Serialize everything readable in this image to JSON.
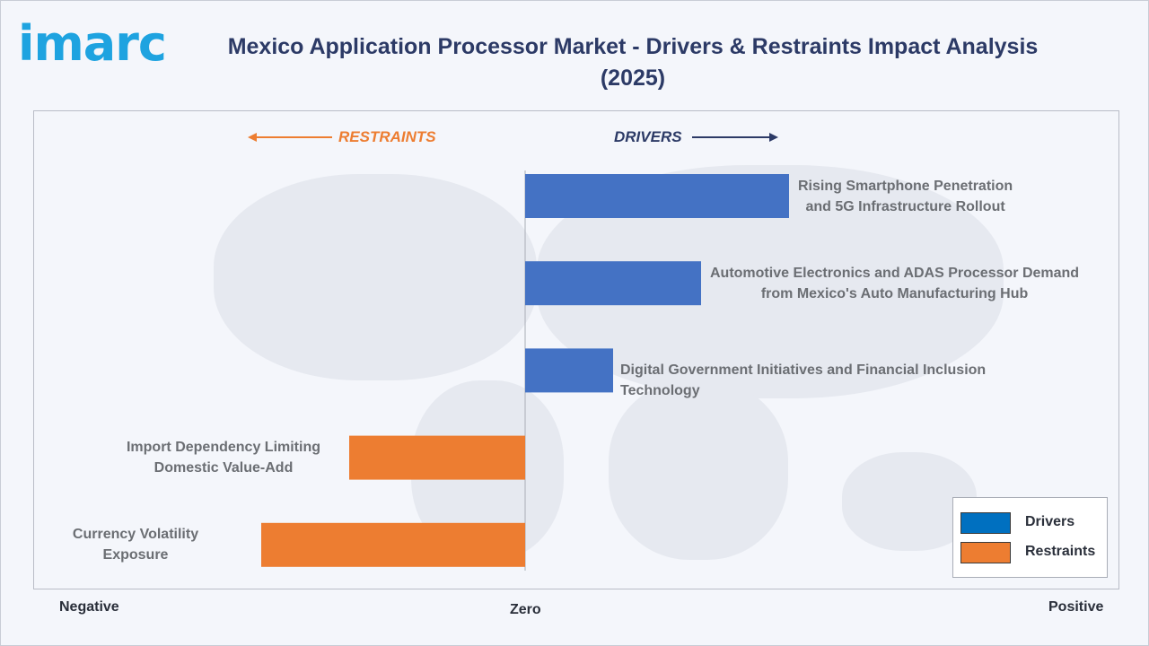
{
  "header": {
    "logo_text": "imarc",
    "title": "Mexico Application Processor Market - Drivers & Restraints Impact Analysis (2025)"
  },
  "colors": {
    "drivers": "#4472c4",
    "restraints": "#ed7d31",
    "title": "#2c3a66",
    "logo": "#1ea3e0",
    "drivers_heading": "#2c3a66",
    "restraints_heading": "#ed7d31"
  },
  "direction_labels": {
    "restraints": "RESTRAINTS",
    "drivers": "DRIVERS"
  },
  "axis": {
    "negative": "Negative",
    "zero": "Zero",
    "positive": "Positive"
  },
  "legend": {
    "drivers": "Drivers",
    "restraints": "Restraints"
  },
  "chart_data": {
    "type": "bar",
    "orientation": "horizontal",
    "title": "Mexico Application Processor Market - Drivers & Restraints Impact Analysis (2025)",
    "xlim": [
      -1,
      1
    ],
    "legend_position": "bottom-right",
    "categories": [
      "Rising Smartphone Penetration\nand 5G Infrastructure Rollout",
      "Automotive Electronics and ADAS Processor Demand\nfrom Mexico's Auto Manufacturing Hub",
      "Digital Government Initiatives and Financial Inclusion Technology",
      "Import Dependency Limiting\nDomestic Value-Add",
      "Currency Volatility\nExposure"
    ],
    "series": [
      {
        "name": "Drivers",
        "values": [
          0.6,
          0.4,
          0.2,
          null,
          null
        ]
      },
      {
        "name": "Restraints",
        "values": [
          null,
          null,
          null,
          -0.4,
          -0.6
        ]
      }
    ]
  }
}
